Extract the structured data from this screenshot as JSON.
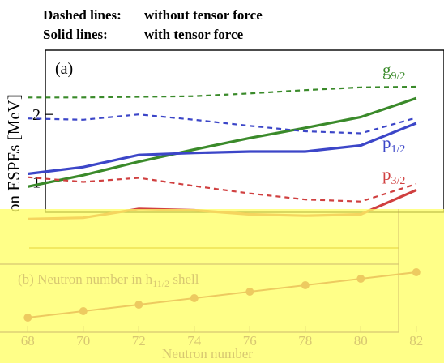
{
  "legend": {
    "dashed_key": "Dashed lines:",
    "dashed_desc": "without tensor force",
    "solid_key": "Solid lines:",
    "solid_desc": "with tensor force"
  },
  "chart_data": [
    {
      "panel": "(a)",
      "type": "line",
      "ylabel": "on ESPEs [MeV]",
      "x": [
        68,
        70,
        72,
        74,
        76,
        78,
        80,
        82
      ],
      "xlim": [
        67,
        83
      ],
      "ylim": [
        0.55,
        2.95
      ],
      "yticks": [
        "1",
        "2"
      ],
      "series": [
        {
          "name": "g",
          "sub": "9/2",
          "style": "dashed",
          "color": "#3a8a2a",
          "values": [
            2.25,
            2.25,
            2.26,
            2.27,
            2.31,
            2.36,
            2.4,
            2.41
          ]
        },
        {
          "name": "g",
          "sub": "9/2",
          "style": "solid",
          "color": "#3a8a2a",
          "values": [
            0.93,
            1.1,
            1.3,
            1.48,
            1.65,
            1.8,
            1.96,
            2.24
          ]
        },
        {
          "name": "p",
          "sub": "1/2",
          "style": "dashed",
          "color": "#3c46c8",
          "values": [
            1.94,
            1.92,
            2.0,
            1.92,
            1.83,
            1.75,
            1.72,
            1.95
          ]
        },
        {
          "name": "p",
          "sub": "1/2",
          "style": "solid",
          "color": "#3c46c8",
          "values": [
            1.12,
            1.22,
            1.4,
            1.43,
            1.45,
            1.45,
            1.54,
            1.87
          ]
        },
        {
          "name": "p",
          "sub": "3/2",
          "style": "dashed",
          "color": "#d04040",
          "values": [
            1.07,
            1.0,
            1.06,
            0.94,
            0.83,
            0.74,
            0.71,
            0.97
          ]
        },
        {
          "name": "p",
          "sub": "3/2",
          "style": "solid",
          "color": "#d04040",
          "values": [
            0.45,
            0.47,
            0.6,
            0.58,
            0.52,
            0.5,
            0.52,
            0.88
          ]
        }
      ]
    },
    {
      "panel": "(b)",
      "type": "line",
      "title": "(b) Neutron number in h",
      "title_sub": "11/2",
      "title_tail": " shell",
      "xlabel": "Neutron number",
      "x": [
        68,
        70,
        72,
        74,
        76,
        78,
        80,
        82
      ],
      "xticks": [
        "68",
        "70",
        "72",
        "74",
        "76",
        "78",
        "80",
        "82"
      ],
      "xlim": [
        67,
        83
      ],
      "ylim": [
        0,
        12
      ],
      "values": [
        0,
        2,
        4,
        6,
        8,
        10,
        12,
        14
      ]
    }
  ],
  "overlay": {
    "color": "#ffff66"
  }
}
